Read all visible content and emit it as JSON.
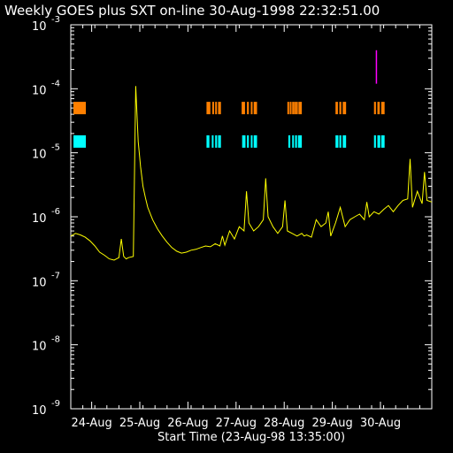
{
  "chart_data": {
    "type": "line",
    "title": "Weekly GOES plus SXT on-line 30-Aug-1998 22:32:51.00",
    "xlabel": "Start Time (23-Aug-98 13:35:00)",
    "ylabel": "",
    "y_scale": "log",
    "ylim": [
      1e-09,
      0.001
    ],
    "xlim_days_from_start": [
      0,
      7.5
    ],
    "y_ticks": [
      {
        "base": "10",
        "exp": "-9",
        "value": 1e-09
      },
      {
        "base": "10",
        "exp": "-8",
        "value": 1e-08
      },
      {
        "base": "10",
        "exp": "-7",
        "value": 1e-07
      },
      {
        "base": "10",
        "exp": "-6",
        "value": 1e-06
      },
      {
        "base": "10",
        "exp": "-5",
        "value": 1e-05
      },
      {
        "base": "10",
        "exp": "-4",
        "value": 0.0001
      },
      {
        "base": "10",
        "exp": "-3",
        "value": 0.001
      }
    ],
    "x_ticks": [
      {
        "label": "24-Aug",
        "day": 0.434
      },
      {
        "label": "25-Aug",
        "day": 1.434
      },
      {
        "label": "26-Aug",
        "day": 2.434
      },
      {
        "label": "27-Aug",
        "day": 3.434
      },
      {
        "label": "28-Aug",
        "day": 4.434
      },
      {
        "label": "29-Aug",
        "day": 5.434
      },
      {
        "label": "30-Aug",
        "day": 6.434
      }
    ],
    "series": [
      {
        "color": "#ffff00",
        "x": [
          0.0,
          0.1,
          0.2,
          0.3,
          0.4,
          0.5,
          0.6,
          0.7,
          0.8,
          0.9,
          1.0,
          1.05,
          1.1,
          1.15,
          1.2,
          1.3,
          1.35,
          1.4,
          1.45,
          1.5,
          1.55,
          1.6,
          1.7,
          1.8,
          1.9,
          2.0,
          2.1,
          2.2,
          2.3,
          2.4,
          2.5,
          2.6,
          2.7,
          2.8,
          2.9,
          3.0,
          3.1,
          3.15,
          3.2,
          3.3,
          3.4,
          3.5,
          3.6,
          3.65,
          3.7,
          3.8,
          3.9,
          4.0,
          4.05,
          4.1,
          4.2,
          4.3,
          4.4,
          4.45,
          4.5,
          4.6,
          4.7,
          4.8,
          4.85,
          4.9,
          5.0,
          5.1,
          5.2,
          5.3,
          5.35,
          5.4,
          5.5,
          5.6,
          5.7,
          5.8,
          5.9,
          6.0,
          6.1,
          6.15,
          6.2,
          6.3,
          6.4,
          6.5,
          6.6,
          6.7,
          6.8,
          6.9,
          7.0,
          7.05,
          7.1,
          7.2,
          7.3,
          7.35,
          7.4,
          7.5
        ],
        "y": [
          5e-07,
          5.5e-07,
          5.2e-07,
          4.8e-07,
          4.2e-07,
          3.5e-07,
          2.8e-07,
          2.5e-07,
          2.2e-07,
          2.1e-07,
          2.3e-07,
          4.5e-07,
          2.4e-07,
          2.2e-07,
          2.3e-07,
          2.4e-07,
          0.00011,
          1.5e-05,
          6e-06,
          3e-06,
          2e-06,
          1.4e-06,
          9e-07,
          6.5e-07,
          5e-07,
          4e-07,
          3.3e-07,
          2.9e-07,
          2.7e-07,
          2.8e-07,
          3e-07,
          3.1e-07,
          3.3e-07,
          3.5e-07,
          3.4e-07,
          3.8e-07,
          3.5e-07,
          5e-07,
          3.6e-07,
          6e-07,
          4.5e-07,
          7e-07,
          6e-07,
          2.5e-06,
          8e-07,
          6e-07,
          7e-07,
          9e-07,
          4e-06,
          1e-06,
          7e-07,
          5.5e-07,
          7e-07,
          1.8e-06,
          6e-07,
          5.5e-07,
          5e-07,
          5.5e-07,
          5e-07,
          5.2e-07,
          4.8e-07,
          9e-07,
          7e-07,
          8e-07,
          1.2e-06,
          5e-07,
          8e-07,
          1.4e-06,
          7e-07,
          9e-07,
          1e-06,
          1.1e-06,
          9e-07,
          1.7e-06,
          1e-06,
          1.2e-06,
          1.1e-06,
          1.3e-06,
          1.5e-06,
          1.2e-06,
          1.5e-06,
          1.8e-06,
          1.9e-06,
          8e-06,
          1.4e-06,
          2.5e-06,
          1.6e-06,
          5e-06,
          1.8e-06,
          1.7e-06
        ]
      }
    ],
    "sxt_markers": {
      "orange": "#ff8000",
      "cyan": "#00ffff",
      "magenta": "#ff00ff",
      "orange_value": 5e-05,
      "cyan_value": 1.5e-05,
      "magenta_range": [
        0.00012,
        0.0004
      ],
      "magenta_day": 6.35,
      "legend_day": 0.15,
      "orange_segments": [
        [
          2.82,
          2.9
        ],
        [
          2.94,
          2.97
        ],
        [
          3.0,
          3.03
        ],
        [
          3.06,
          3.12
        ],
        [
          3.55,
          3.62
        ],
        [
          3.66,
          3.7
        ],
        [
          3.74,
          3.76
        ],
        [
          3.8,
          3.87
        ],
        [
          4.5,
          4.52
        ],
        [
          4.55,
          4.57
        ],
        [
          4.6,
          4.62
        ],
        [
          4.64,
          4.66
        ],
        [
          4.68,
          4.7
        ],
        [
          4.73,
          4.8
        ],
        [
          5.5,
          5.55
        ],
        [
          5.58,
          5.62
        ],
        [
          5.65,
          5.72
        ],
        [
          6.3,
          6.34
        ],
        [
          6.37,
          6.42
        ],
        [
          6.45,
          6.52
        ]
      ],
      "cyan_segments": [
        [
          2.82,
          2.88
        ],
        [
          2.93,
          2.96
        ],
        [
          3.0,
          3.04
        ],
        [
          3.06,
          3.12
        ],
        [
          3.56,
          3.63
        ],
        [
          3.66,
          3.7
        ],
        [
          3.74,
          3.77
        ],
        [
          3.8,
          3.87
        ],
        [
          4.52,
          4.56
        ],
        [
          4.6,
          4.63
        ],
        [
          4.66,
          4.7
        ],
        [
          4.72,
          4.8
        ],
        [
          5.5,
          5.56
        ],
        [
          5.58,
          5.62
        ],
        [
          5.65,
          5.72
        ],
        [
          6.3,
          6.34
        ],
        [
          6.37,
          6.43
        ],
        [
          6.45,
          6.52
        ]
      ]
    }
  }
}
